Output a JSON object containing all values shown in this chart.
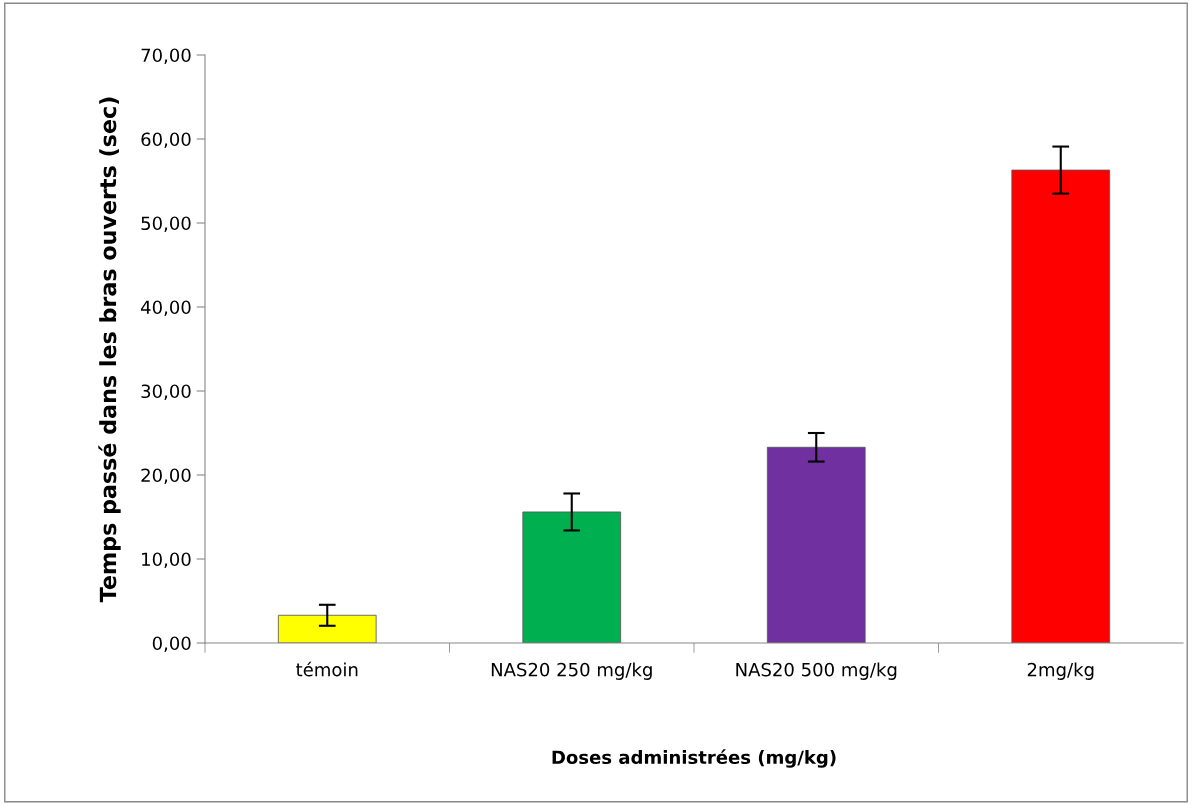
{
  "chart_data": {
    "type": "bar",
    "xlabel": "Doses administrées (mg/kg)",
    "ylabel": "Temps passé dans les bras ouverts (sec)",
    "categories": [
      "témoin",
      "NAS20 250 mg/kg",
      "NAS20 500 mg/kg",
      "2mg/kg"
    ],
    "values": [
      3.3,
      15.6,
      23.3,
      56.3
    ],
    "errors": [
      1.25,
      2.2,
      1.7,
      2.8
    ],
    "colors": [
      "#ffff00",
      "#00b050",
      "#7030a0",
      "#ff0000"
    ],
    "ylim": [
      0,
      70
    ],
    "yticks": [
      {
        "value": 0,
        "label": "0,00"
      },
      {
        "value": 10,
        "label": "10,00"
      },
      {
        "value": 20,
        "label": "20,00"
      },
      {
        "value": 30,
        "label": "30,00"
      },
      {
        "value": 40,
        "label": "40,00"
      },
      {
        "value": 50,
        "label": "50,00"
      },
      {
        "value": 60,
        "label": "60,00"
      },
      {
        "value": 70,
        "label": "70,00"
      }
    ],
    "grid": false
  }
}
